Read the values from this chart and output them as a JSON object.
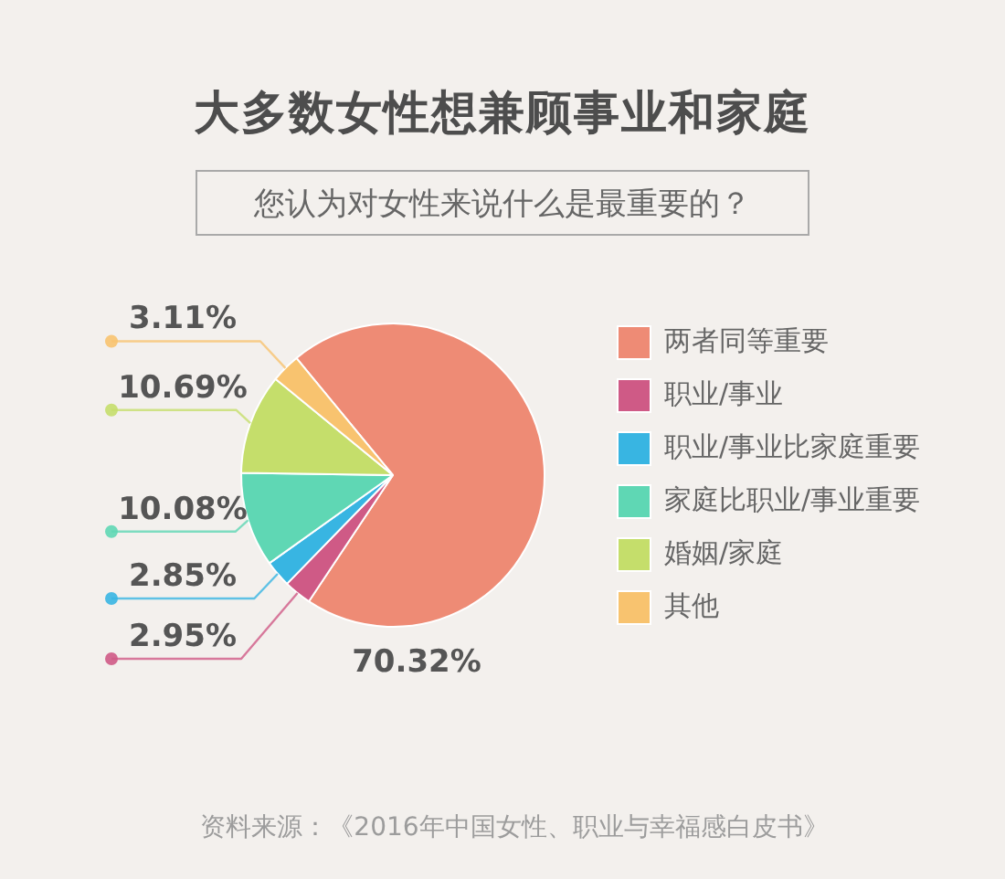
{
  "chart_data": {
    "type": "pie",
    "title": "大多数女性想兼顾事业和家庭",
    "subtitle": "您认为对女性来说什么是最重要的？",
    "categories": [
      "两者同等重要",
      "职业/事业",
      "职业/事业比家庭重要",
      "家庭比职业/事业重要",
      "婚姻/家庭",
      "其他"
    ],
    "values": [
      70.32,
      2.95,
      2.85,
      10.08,
      10.69,
      3.11
    ],
    "colors": [
      "#ee8b75",
      "#cf5a86",
      "#38b5e2",
      "#5fd7b4",
      "#c5de6b",
      "#f8c36f"
    ],
    "value_labels": [
      "70.32%",
      "2.95%",
      "2.85%",
      "10.08%",
      "10.69%",
      "3.11%"
    ],
    "legend": "right",
    "annotations": [
      "资料来源：《2016年中国女性、职业与幸福感白皮书》"
    ]
  }
}
